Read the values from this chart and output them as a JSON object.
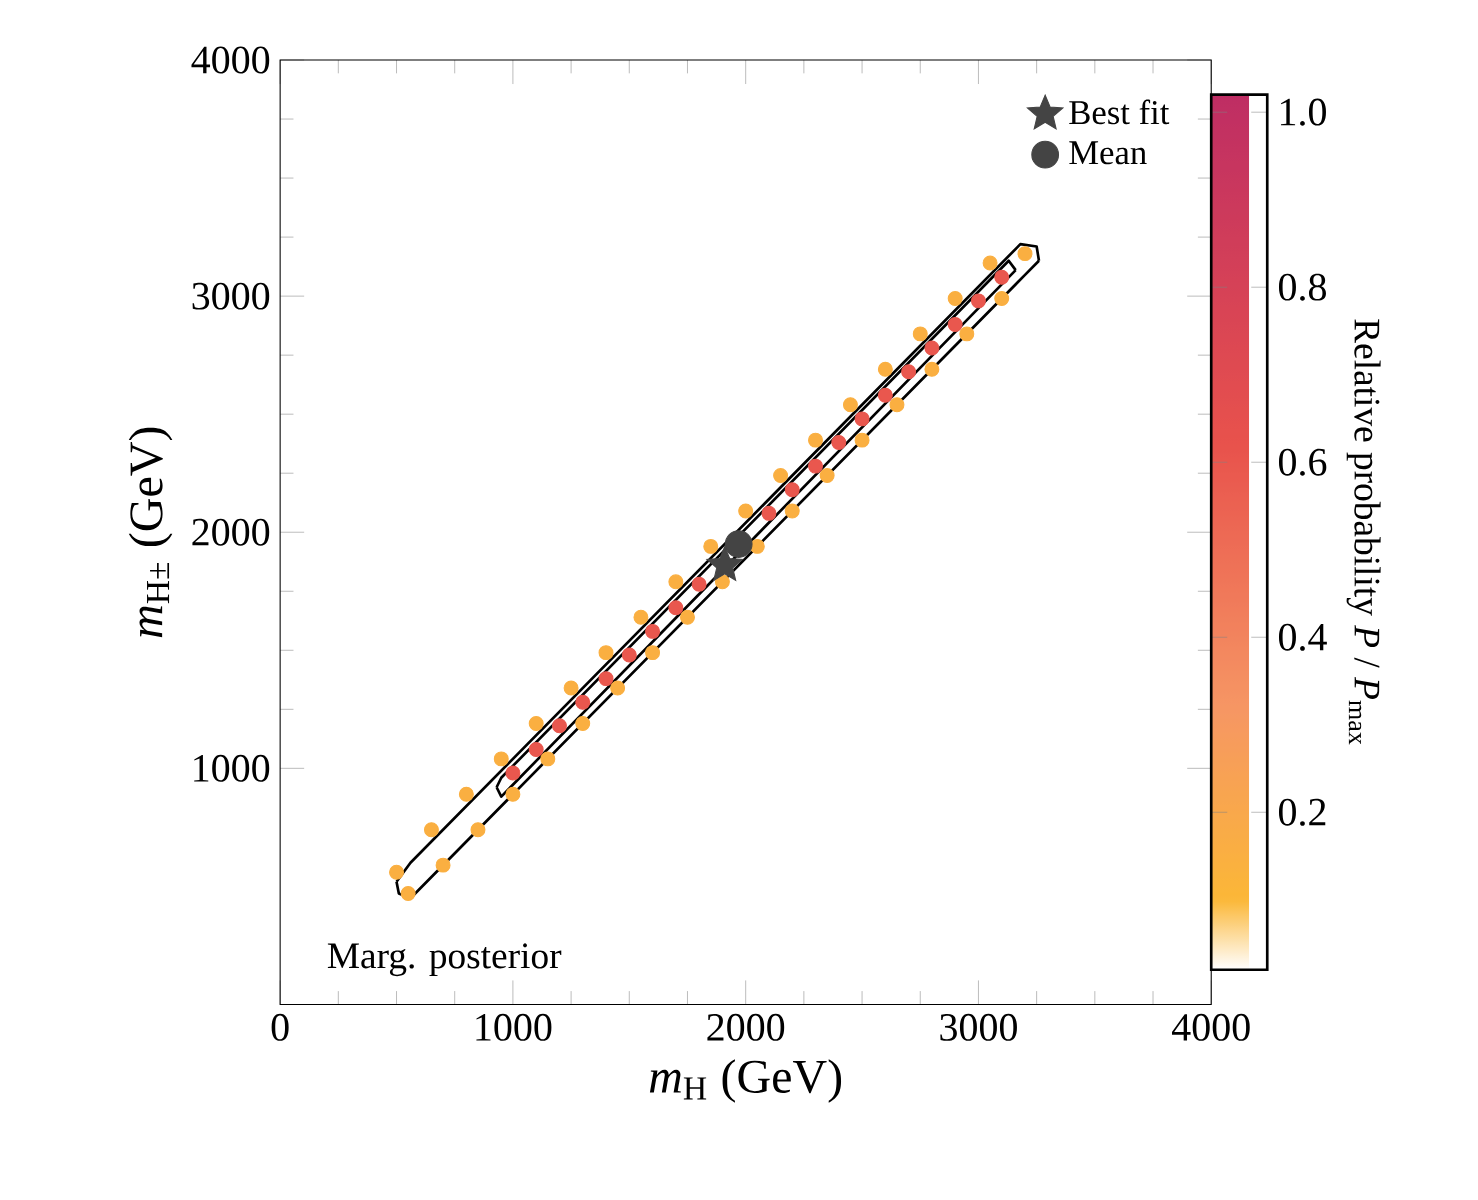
{
  "chart_data": {
    "type": "scatter",
    "xlabel": "*m*$_{H}$ (GeV)",
    "ylabel": "*m*$_{H±}$ (GeV)",
    "clabel": "Relative probability *P* / *P*$_{max}$",
    "xlim": [
      0,
      4000
    ],
    "ylim": [
      0,
      4000
    ],
    "xticks": [
      0,
      1000,
      2000,
      3000,
      4000
    ],
    "yticks": [
      1000,
      2000,
      3000,
      4000
    ],
    "clim": [
      0.02,
      1.02
    ],
    "cticks": [
      0.2,
      0.4,
      0.6,
      0.8,
      {
        "value": 1.0,
        "label": "1.0"
      }
    ],
    "legend": "top right",
    "annotations": [
      "Marg. posterior"
    ],
    "series": [
      {
        "type": "scatter",
        "marker": "circle",
        "x": [
          500,
          650,
          800,
          950,
          1100,
          1250,
          1400,
          1550,
          1700,
          1850,
          2000,
          2150,
          2300,
          2450,
          2600,
          2750,
          2900,
          3050,
          3200,
          550,
          700,
          850,
          1000,
          1150,
          1300,
          1450,
          1600,
          1750,
          1900,
          2050,
          2200,
          2350,
          2500,
          2650,
          2800,
          2950,
          3100
        ],
        "values": [
          560,
          740,
          890,
          1040,
          1190,
          1340,
          1490,
          1640,
          1790,
          1940,
          2090,
          2240,
          2390,
          2540,
          2690,
          2840,
          2990,
          3140,
          3180,
          470,
          590,
          740,
          890,
          1040,
          1190,
          1340,
          1490,
          1640,
          1790,
          1940,
          2090,
          2240,
          2390,
          2540,
          2690,
          2840,
          2990
        ],
        "cvalues": [
          0.15,
          0.15,
          0.15,
          0.15,
          0.15,
          0.15,
          0.15,
          0.15,
          0.15,
          0.15,
          0.15,
          0.15,
          0.15,
          0.15,
          0.15,
          0.15,
          0.15,
          0.15,
          0.15,
          0.15,
          0.15,
          0.15,
          0.15,
          0.15,
          0.15,
          0.15,
          0.15,
          0.15,
          0.15,
          0.15,
          0.15,
          0.15,
          0.15,
          0.15,
          0.15,
          0.15,
          0.15
        ]
      },
      {
        "type": "scatter",
        "marker": "circle",
        "x": [
          1000,
          1100,
          1200,
          1300,
          1400,
          1500,
          1600,
          1700,
          1800,
          1900,
          2000,
          2100,
          2200,
          2300,
          2400,
          2500,
          2600,
          2700,
          2800,
          2900,
          3000,
          3100
        ],
        "values": [
          980,
          1080,
          1180,
          1280,
          1380,
          1480,
          1580,
          1680,
          1780,
          null,
          null,
          2080,
          2180,
          2280,
          2380,
          2480,
          2580,
          2680,
          2780,
          2880,
          2980,
          3080
        ],
        "cvalues": [
          0.6,
          0.6,
          0.6,
          0.6,
          0.6,
          0.6,
          0.6,
          0.6,
          0.6,
          null,
          null,
          0.6,
          0.6,
          0.6,
          0.6,
          0.6,
          0.6,
          0.6,
          0.6,
          0.6,
          0.6,
          0.6
        ]
      },
      {
        "type": "line",
        "color": "#000000",
        "marker": "none",
        "x": [
          500,
          510,
          560,
          3200,
          3260
        ],
        "values": [
          520,
          470,
          450,
          3090,
          3150
        ]
      },
      {
        "type": "line",
        "color": "#000000",
        "marker": "none",
        "x": [
          500,
          560,
          3180,
          3250,
          3260
        ],
        "values": [
          520,
          600,
          3220,
          3210,
          3150
        ]
      },
      {
        "type": "line",
        "color": "#000000",
        "marker": "none",
        "x": [
          930,
          950,
          3120,
          3160
        ],
        "values": [
          920,
          880,
          3070,
          3110
        ]
      },
      {
        "type": "line",
        "color": "#000000",
        "marker": "none",
        "x": [
          930,
          950,
          3130,
          3160
        ],
        "values": [
          920,
          960,
          3150,
          3110
        ]
      },
      {
        "type": "scatter",
        "name": "Best fit",
        "color": "#444444",
        "marker": "star",
        "x": [
          1910
        ],
        "values": [
          1860
        ]
      },
      {
        "type": "scatter",
        "name": "Mean",
        "color": "#444444",
        "marker": "circle",
        "x": [
          1970
        ],
        "values": [
          1950
        ]
      }
    ]
  }
}
